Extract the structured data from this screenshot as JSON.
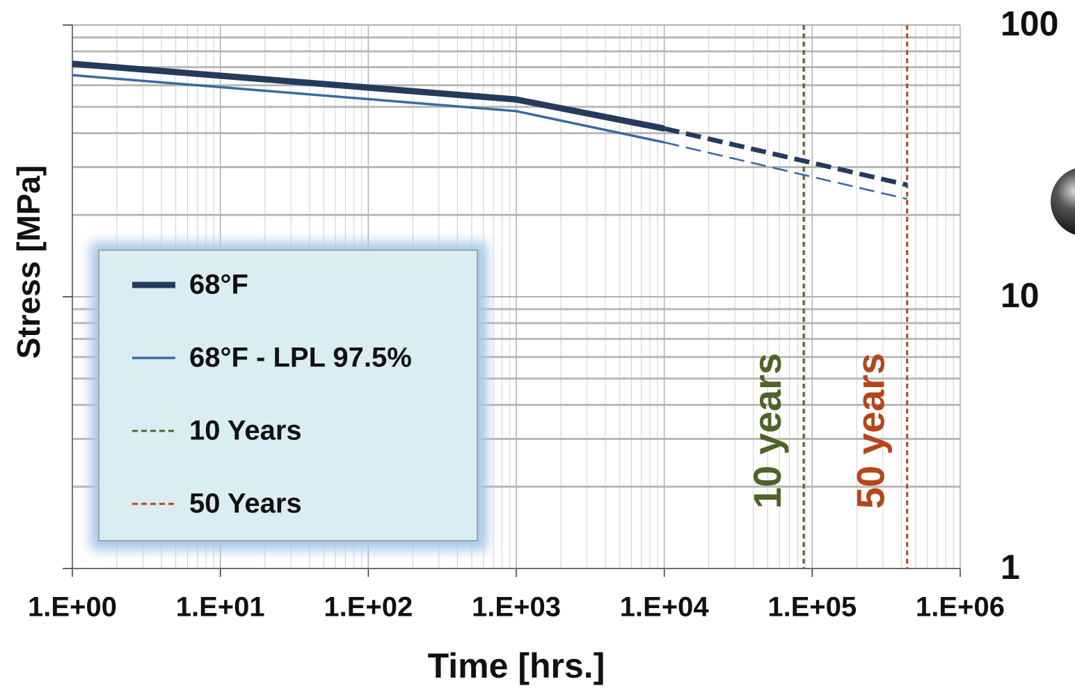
{
  "chart_data": {
    "type": "line",
    "x_label": "Time [hrs.]",
    "y_label": "Stress [MPa]",
    "x": [
      1,
      1000,
      10000,
      438000
    ],
    "series": [
      {
        "name": "68°F",
        "color": "#243b5e",
        "width": 9,
        "values": [
          72,
          53.2,
          41.6,
          25.8
        ]
      },
      {
        "name": "68°F - LPL 97.5%",
        "color": "#3a6aa0",
        "width": 3.5,
        "values": [
          65.4,
          48.2,
          37.0,
          22.9
        ]
      }
    ],
    "dashed_from_x": 10000,
    "reference_lines": [
      {
        "name": "10 Years",
        "label": "10 years",
        "x": 87600,
        "color": "#4f6228"
      },
      {
        "name": "50 Years",
        "label": "50 years",
        "x": 438000,
        "color": "#b5461a"
      }
    ],
    "x_log": true,
    "y_log": true,
    "xlim": [
      1,
      1000000
    ],
    "xticks": [
      {
        "value": 1,
        "label": "1.E+00"
      },
      {
        "value": 10,
        "label": "1.E+01"
      },
      {
        "value": 100,
        "label": "1.E+02"
      },
      {
        "value": 1000,
        "label": "1.E+03"
      },
      {
        "value": 10000,
        "label": "1.E+04"
      },
      {
        "value": 100000,
        "label": "1.E+05"
      },
      {
        "value": 1000000,
        "label": "1.E+06"
      }
    ],
    "ylim": [
      1,
      100
    ],
    "yticks": [
      1,
      10,
      100
    ],
    "grid": true,
    "legend": "lower left"
  }
}
